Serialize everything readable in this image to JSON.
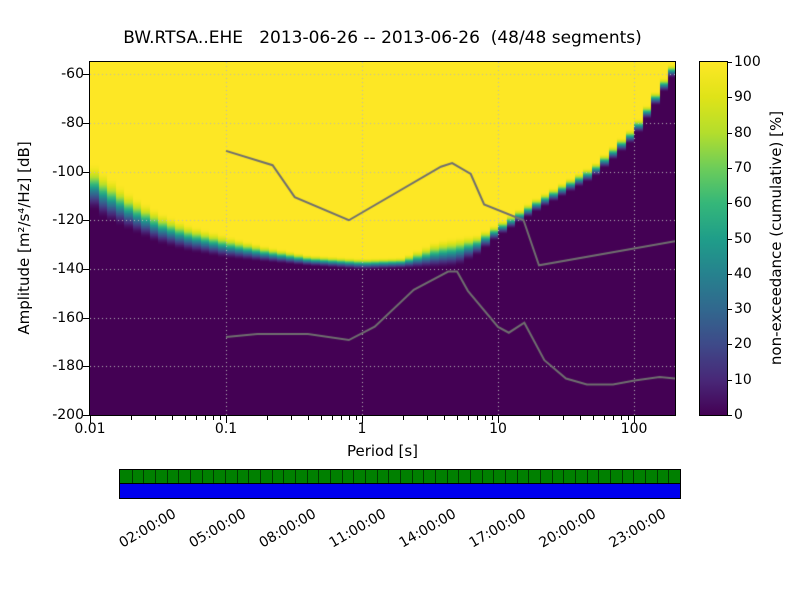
{
  "title": "BW.RTSA..EHE   2013-06-26 -- 2013-06-26  (48/48 segments)",
  "axes": {
    "xlabel": "Period [s]",
    "ylabel": "Amplitude [m²/s⁴/Hz] [dB]",
    "x_tick_labels": [
      "0.01",
      "0.1",
      "1",
      "10",
      "100"
    ],
    "x_tick_logs": [
      -2,
      -1,
      0,
      1,
      2
    ],
    "x_range_log10": [
      -2,
      2.301
    ],
    "x_scale": "log",
    "y_tick_labels": [
      "-60",
      "-80",
      "-100",
      "-120",
      "-140",
      "-160",
      "-180",
      "-200"
    ],
    "y_ticks": [
      -60,
      -80,
      -100,
      -120,
      -140,
      -160,
      -180,
      -200
    ],
    "y_range": [
      -200,
      -55
    ],
    "x_grid_logs": [
      -1,
      0,
      1,
      2
    ],
    "grid_style": "dotted"
  },
  "colorbar": {
    "label": "non-exceedance (cumulative) [%]",
    "tick_labels": [
      "0",
      "10",
      "20",
      "30",
      "40",
      "50",
      "60",
      "70",
      "80",
      "90",
      "100"
    ],
    "ticks": [
      0,
      10,
      20,
      30,
      40,
      50,
      60,
      70,
      80,
      90,
      100
    ],
    "range": [
      0,
      100
    ],
    "colormap": "viridis",
    "color_low": "#440154",
    "color_mid": "#21918c",
    "color_high": "#fde725"
  },
  "coverage_bar": {
    "top_strip_color": "#008000",
    "bottom_strip_color": "#0000ee",
    "segment_tick_count": 48,
    "day_span_hours": 24,
    "time_tick_hours": [
      2,
      5,
      8,
      11,
      14,
      17,
      20,
      23
    ],
    "time_tick_labels": [
      "02:00:00",
      "05:00:00",
      "08:00:00",
      "11:00:00",
      "14:00:00",
      "17:00:00",
      "20:00:00",
      "23:00:00"
    ]
  },
  "chart_data": {
    "type": "heatmap",
    "subtype": "ppsd-cumulative-nonexceedance",
    "station": "BW.RTSA..EHE",
    "date_start": "2013-06-26",
    "date_end": "2013-06-26",
    "segments_used": 48,
    "segments_total": 48,
    "xlabel": "Period [s]",
    "ylabel": "Amplitude [m²/s⁴/Hz] [dB]",
    "x_scale": "log",
    "x_range_period_s": [
      0.01,
      200
    ],
    "y_range_db": [
      -200,
      -55
    ],
    "value_label": "non-exceedance (cumulative) [%]",
    "value_range_percent": [
      0,
      100
    ],
    "colormap": "viridis",
    "cumulative_boundary": {
      "note": "50% non-exceedance amplitude versus log10(period in s); transition_width_db is the dB span over which the value goes 0% to 100%",
      "log10_period": [
        -2.0,
        -1.9,
        -1.7,
        -1.5,
        -1.3,
        -1.0,
        -0.7,
        -0.4,
        0.0,
        0.3,
        0.55,
        0.7,
        0.85,
        1.0,
        1.3,
        1.7,
        2.0,
        2.301
      ],
      "amplitude_db": [
        -105,
        -110,
        -117,
        -123,
        -127,
        -131,
        -134,
        -136.5,
        -138,
        -137.5,
        -134,
        -133,
        -130,
        -124,
        -113,
        -100,
        -84,
        -57
      ],
      "transition_width_db": [
        20,
        20,
        16,
        14,
        12,
        10,
        7,
        5,
        5,
        5,
        12,
        13,
        9,
        6,
        6,
        6,
        6,
        6
      ]
    },
    "noise_models": {
      "high_noise_model": {
        "period_s": [
          0.1,
          0.22,
          0.32,
          0.8,
          3.8,
          4.6,
          6.3,
          7.9,
          15.4,
          20.0,
          200.0
        ],
        "amplitude_db": [
          -91.5,
          -97.4,
          -110.5,
          -120.0,
          -98.0,
          -96.5,
          -101.0,
          -113.5,
          -120.0,
          -138.5,
          -128.6
        ]
      },
      "low_noise_model": {
        "period_s": [
          0.1,
          0.17,
          0.4,
          0.8,
          1.24,
          2.4,
          4.3,
          5.0,
          6.0,
          10.0,
          12.0,
          15.6,
          21.9,
          31.6,
          45.0,
          70.0,
          101.0,
          154.0,
          200.0
        ],
        "amplitude_db": [
          -168.0,
          -166.7,
          -166.7,
          -169.2,
          -163.7,
          -148.6,
          -141.1,
          -141.1,
          -149.0,
          -163.8,
          -166.2,
          -162.1,
          -177.5,
          -185.0,
          -187.5,
          -187.5,
          -185.8,
          -184.4,
          -185.0
        ]
      }
    }
  }
}
